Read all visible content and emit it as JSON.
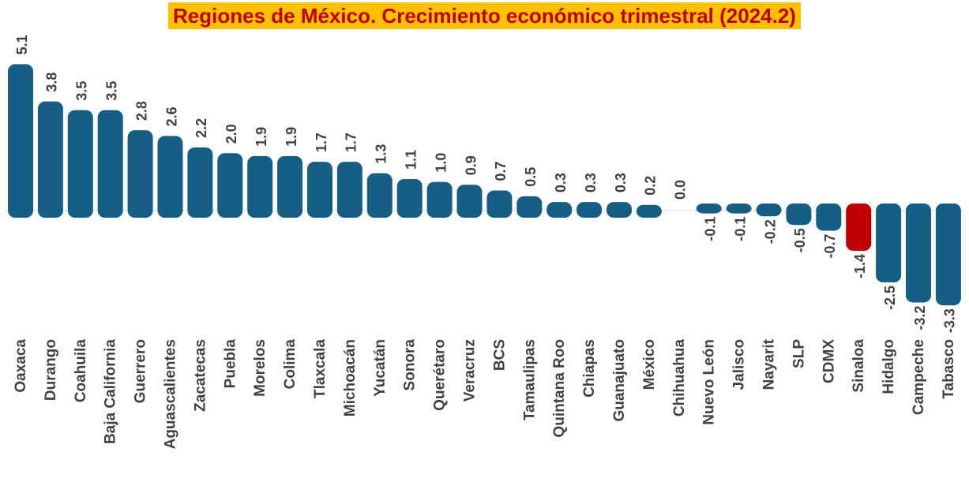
{
  "chart_data": {
    "type": "bar",
    "title": "Regiones de México. Crecimiento económico trimestral (2024.2)",
    "xlabel": "",
    "ylabel": "",
    "categories": [
      "Oaxaca",
      "Durango",
      "Coahuila",
      "Baja California",
      "Guerrero",
      "Aguascalientes",
      "Zacatecas",
      "Puebla",
      "Morelos",
      "Colima",
      "Tlaxcala",
      "Michoacán",
      "Yucatán",
      "Sonora",
      "Querétaro",
      "Veracruz",
      "BCS",
      "Tamaulipas",
      "Quintana Roo",
      "Chiapas",
      "Guanajuato",
      "México",
      "Chihuahua",
      "Nuevo León",
      "Jalisco",
      "Nayarit",
      "SLP",
      "CDMX",
      "Sinaloa",
      "Hidalgo",
      "Campeche",
      "Tabasco"
    ],
    "values": [
      5.1,
      3.8,
      3.5,
      3.5,
      2.8,
      2.6,
      2.2,
      2.0,
      1.9,
      1.9,
      1.7,
      1.7,
      1.3,
      1.1,
      1.0,
      0.9,
      0.7,
      0.5,
      0.3,
      0.3,
      0.3,
      0.2,
      0.0,
      -0.1,
      -0.1,
      -0.2,
      -0.5,
      -0.7,
      -1.4,
      -2.5,
      -3.2,
      -3.3
    ],
    "value_labels": [
      "5.1",
      "3.8",
      "3.5",
      "3.5",
      "2.8",
      "2.6",
      "2.2",
      "2.0",
      "1.9",
      "1.9",
      "1.7",
      "1.7",
      "1.3",
      "1.1",
      "1.0",
      "0.9",
      "0.7",
      "0.5",
      "0.3",
      "0.3",
      "0.3",
      "0.2",
      "0.0",
      "-0.1",
      "-0.1",
      "-0.2",
      "-0.5",
      "-0.7",
      "-1.4",
      "-2.5",
      "-3.2",
      "-3.3"
    ],
    "highlight_category": "Sinaloa",
    "colors": {
      "bar": "#165e83",
      "highlight": "#c00000",
      "title_text": "#c00000",
      "title_background": "#ffc000",
      "labels": "#404040",
      "baseline": "#d9d9d9"
    },
    "grid": false,
    "legend": "none"
  }
}
